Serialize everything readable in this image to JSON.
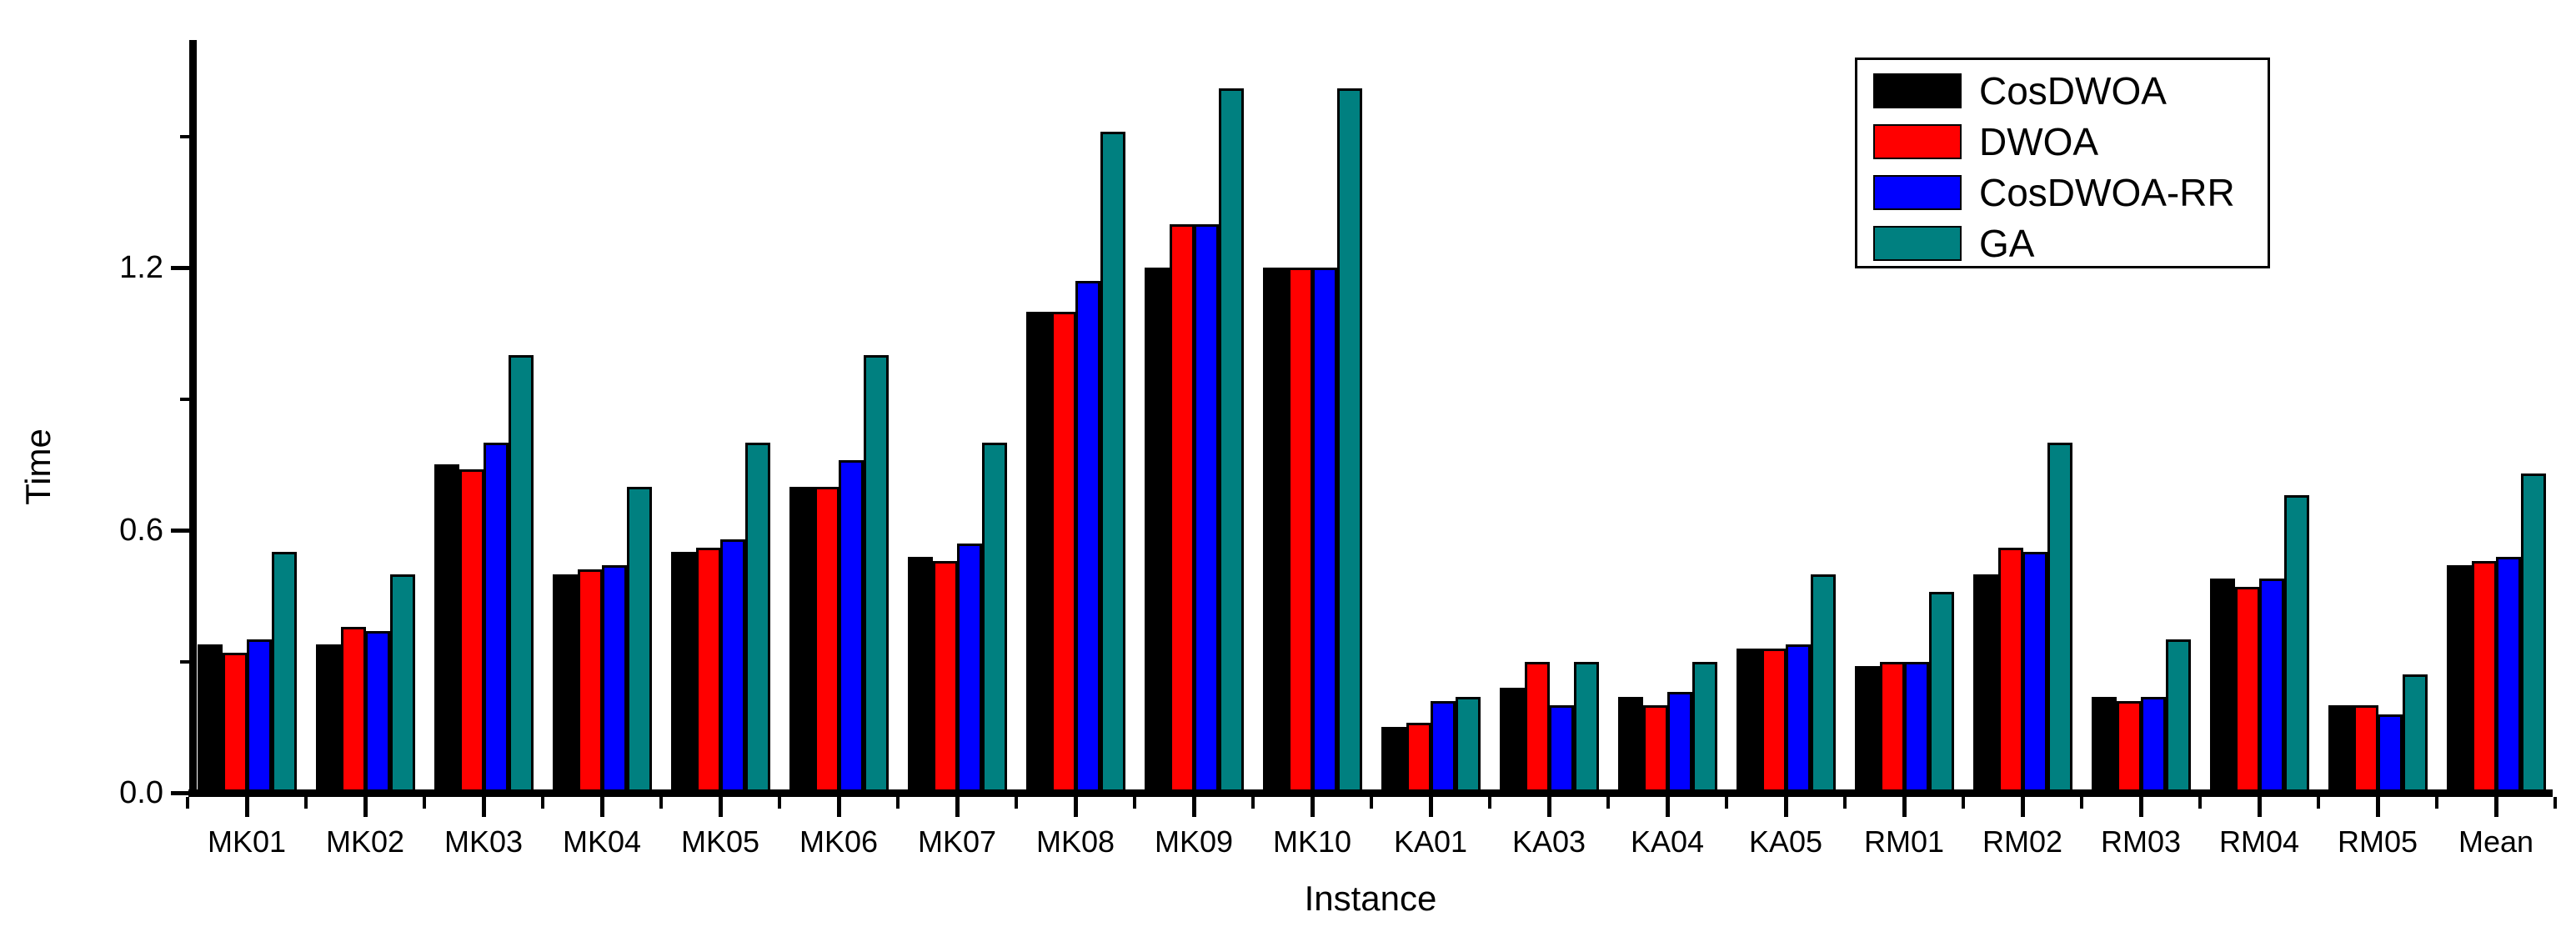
{
  "figure": {
    "background": "#ffffff"
  },
  "chart_data": {
    "type": "bar",
    "title": "",
    "xlabel": "Instance",
    "ylabel": "Time",
    "categories": [
      "MK01",
      "MK02",
      "MK03",
      "MK04",
      "MK05",
      "MK06",
      "MK07",
      "MK08",
      "MK09",
      "MK10",
      "KA01",
      "KA03",
      "KA04",
      "KA05",
      "RM01",
      "RM02",
      "RM03",
      "RM04",
      "RM05",
      "Mean"
    ],
    "series": [
      {
        "name": "CosDWOA",
        "color": "#000000",
        "values": [
          0.34,
          0.34,
          0.75,
          0.5,
          0.55,
          0.7,
          0.54,
          1.1,
          1.2,
          1.2,
          0.15,
          0.24,
          0.22,
          0.33,
          0.29,
          0.5,
          0.22,
          0.49,
          0.2,
          0.52
        ]
      },
      {
        "name": "DWOA",
        "color": "#ff0000",
        "values": [
          0.32,
          0.38,
          0.74,
          0.51,
          0.56,
          0.7,
          0.53,
          1.1,
          1.3,
          1.2,
          0.16,
          0.3,
          0.2,
          0.33,
          0.3,
          0.56,
          0.21,
          0.47,
          0.2,
          0.53
        ]
      },
      {
        "name": "CosDWOA-RR",
        "color": "#0000ff",
        "values": [
          0.35,
          0.37,
          0.8,
          0.52,
          0.58,
          0.76,
          0.57,
          1.17,
          1.3,
          1.2,
          0.21,
          0.2,
          0.23,
          0.34,
          0.3,
          0.55,
          0.22,
          0.49,
          0.18,
          0.54
        ]
      },
      {
        "name": "GA",
        "color": "#008080",
        "values": [
          0.55,
          0.5,
          1.0,
          0.7,
          0.8,
          1.0,
          0.8,
          1.51,
          1.61,
          1.61,
          0.22,
          0.3,
          0.3,
          0.5,
          0.46,
          0.8,
          0.35,
          0.68,
          0.27,
          0.73
        ]
      }
    ],
    "ylim": [
      0,
      1.72
    ],
    "yticks": [
      {
        "value": 0.0,
        "label": "0.0"
      },
      {
        "value": 0.6,
        "label": "0.6"
      },
      {
        "value": 1.2,
        "label": "1.2"
      }
    ],
    "minor_yticks": [
      0.3,
      0.9,
      1.5
    ],
    "grid": false,
    "legend_position": "top-right",
    "bar_outline_color": "#000000",
    "axis_color": "#000000"
  }
}
